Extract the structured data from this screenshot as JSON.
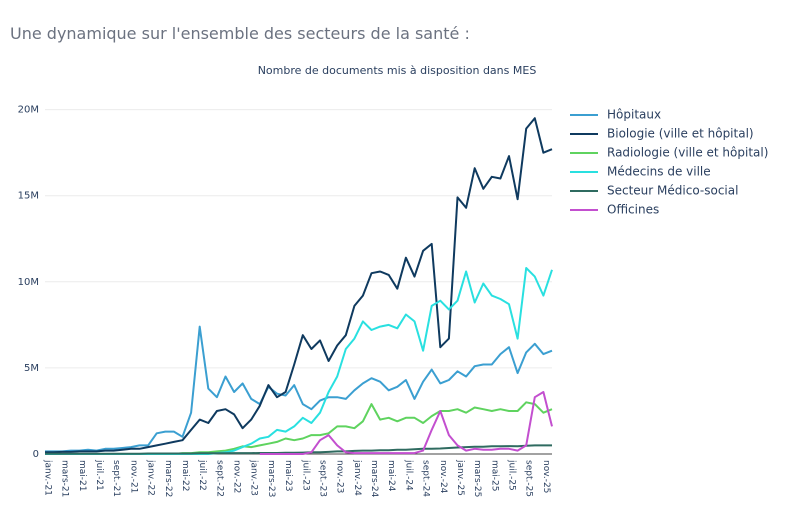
{
  "header": "Une dynamique sur l'ensemble des secteurs de la santé :",
  "chart_data": {
    "type": "line",
    "title": "Nombre de documents mis à disposition dans MES",
    "categories": [
      "janv.-21",
      null,
      "mars-21",
      null,
      "mai-21",
      null,
      "juil.-21",
      null,
      "sept.-21",
      null,
      "nov.-21",
      null,
      "janv.-22",
      null,
      "mars-22",
      null,
      "mai-22",
      null,
      "juil.-22",
      null,
      "sept.-22",
      null,
      "nov.-22",
      null,
      "janv.-23",
      null,
      "mars-23",
      null,
      "mai-23",
      null,
      "juil.-23",
      null,
      "sept.-23",
      null,
      "nov.-23",
      null,
      "janv.-24",
      null,
      "mars-24",
      null,
      "mai-24",
      null,
      "juil.-24",
      null,
      "sept.-24",
      null,
      "nov.-24",
      null,
      "janv.-25",
      null,
      "mars-25",
      null,
      "mai-25",
      null,
      "juil.-25",
      null,
      "sept.-25",
      null,
      "nov.-25",
      null
    ],
    "ylim": [
      0,
      20500000
    ],
    "yticks": [
      {
        "value": 0,
        "label": "0"
      },
      {
        "value": 5000000,
        "label": "5M"
      },
      {
        "value": 10000000,
        "label": "10M"
      },
      {
        "value": 15000000,
        "label": "15M"
      },
      {
        "value": 20000000,
        "label": "20M"
      }
    ],
    "grid": true,
    "legend": "right",
    "series": [
      {
        "name": "Hôpitaux",
        "color": "#3b9fd1",
        "values": [
          150000,
          150000,
          150000,
          200000,
          200000,
          250000,
          200000,
          300000,
          300000,
          350000,
          400000,
          500000,
          500000,
          1200000,
          1300000,
          1300000,
          1000000,
          2400000,
          7400000,
          3800000,
          3300000,
          4500000,
          3600000,
          4100000,
          3200000,
          2900000,
          3900000,
          3500000,
          3400000,
          4000000,
          2900000,
          2600000,
          3100000,
          3300000,
          3300000,
          3200000,
          3700000,
          4100000,
          4400000,
          4200000,
          3700000,
          3900000,
          4300000,
          3200000,
          4200000,
          4900000,
          4100000,
          4300000,
          4800000,
          4500000,
          5100000,
          5200000,
          5200000,
          5800000,
          6200000,
          4700000,
          5900000,
          6400000,
          5800000,
          6000000
        ]
      },
      {
        "name": "Biologie (ville et hôpital)",
        "color": "#0f3a5f",
        "values": [
          100000,
          100000,
          120000,
          120000,
          150000,
          150000,
          150000,
          200000,
          200000,
          250000,
          300000,
          300000,
          400000,
          500000,
          600000,
          700000,
          800000,
          1400000,
          2000000,
          1800000,
          2500000,
          2600000,
          2300000,
          1500000,
          2000000,
          2800000,
          4000000,
          3300000,
          3600000,
          5200000,
          6900000,
          6100000,
          6600000,
          5400000,
          6300000,
          6900000,
          8600000,
          9200000,
          10500000,
          10600000,
          10400000,
          9600000,
          11400000,
          10300000,
          11800000,
          12200000,
          6200000,
          6700000,
          14900000,
          14300000,
          16600000,
          15400000,
          16100000,
          16000000,
          17300000,
          14800000,
          18900000,
          19500000,
          17500000,
          17700000
        ]
      },
      {
        "name": "Radiologie (ville et hôpital)",
        "color": "#5fd35f",
        "values": [
          0,
          0,
          0,
          0,
          0,
          0,
          0,
          0,
          0,
          0,
          0,
          0,
          0,
          0,
          0,
          0,
          50000,
          50000,
          100000,
          100000,
          150000,
          200000,
          300000,
          450000,
          400000,
          500000,
          600000,
          700000,
          900000,
          800000,
          900000,
          1100000,
          1100000,
          1200000,
          1600000,
          1600000,
          1500000,
          1900000,
          2900000,
          2000000,
          2100000,
          1900000,
          2100000,
          2100000,
          1800000,
          2200000,
          2500000,
          2500000,
          2600000,
          2400000,
          2700000,
          2600000,
          2500000,
          2600000,
          2500000,
          2500000,
          3000000,
          2900000,
          2400000,
          2600000
        ]
      },
      {
        "name": "Médecins de ville",
        "color": "#29e0e0",
        "values": [
          0,
          0,
          0,
          0,
          0,
          0,
          0,
          0,
          0,
          0,
          0,
          0,
          0,
          0,
          0,
          0,
          0,
          0,
          0,
          0,
          50000,
          100000,
          200000,
          400000,
          600000,
          900000,
          1000000,
          1400000,
          1300000,
          1600000,
          2100000,
          1800000,
          2400000,
          3600000,
          4500000,
          6100000,
          6700000,
          7700000,
          7200000,
          7400000,
          7500000,
          7300000,
          8100000,
          7700000,
          6000000,
          8600000,
          8900000,
          8400000,
          8900000,
          10600000,
          8800000,
          9900000,
          9200000,
          9000000,
          8700000,
          6700000,
          10800000,
          10300000,
          9200000,
          10700000
        ]
      },
      {
        "name": "Secteur Médico-social",
        "color": "#2f6b60",
        "values": [
          20000,
          20000,
          20000,
          20000,
          20000,
          20000,
          20000,
          20000,
          20000,
          20000,
          20000,
          20000,
          30000,
          30000,
          30000,
          30000,
          30000,
          30000,
          40000,
          40000,
          40000,
          40000,
          50000,
          50000,
          50000,
          60000,
          60000,
          60000,
          70000,
          70000,
          80000,
          100000,
          100000,
          120000,
          150000,
          150000,
          180000,
          200000,
          200000,
          220000,
          220000,
          250000,
          250000,
          280000,
          300000,
          300000,
          320000,
          350000,
          380000,
          400000,
          420000,
          420000,
          450000,
          450000,
          460000,
          450000,
          480000,
          500000,
          500000,
          500000
        ]
      },
      {
        "name": "Officines",
        "color": "#c34fcf",
        "values": [
          null,
          null,
          null,
          null,
          null,
          null,
          null,
          null,
          null,
          null,
          null,
          null,
          null,
          null,
          null,
          null,
          null,
          null,
          null,
          null,
          null,
          null,
          null,
          null,
          null,
          0,
          0,
          0,
          0,
          0,
          0,
          100000,
          800000,
          1100000,
          500000,
          100000,
          50000,
          50000,
          50000,
          50000,
          50000,
          50000,
          50000,
          50000,
          200000,
          1400000,
          2500000,
          1100000,
          500000,
          200000,
          300000,
          250000,
          250000,
          300000,
          300000,
          200000,
          500000,
          3300000,
          3600000,
          1600000
        ]
      }
    ]
  }
}
